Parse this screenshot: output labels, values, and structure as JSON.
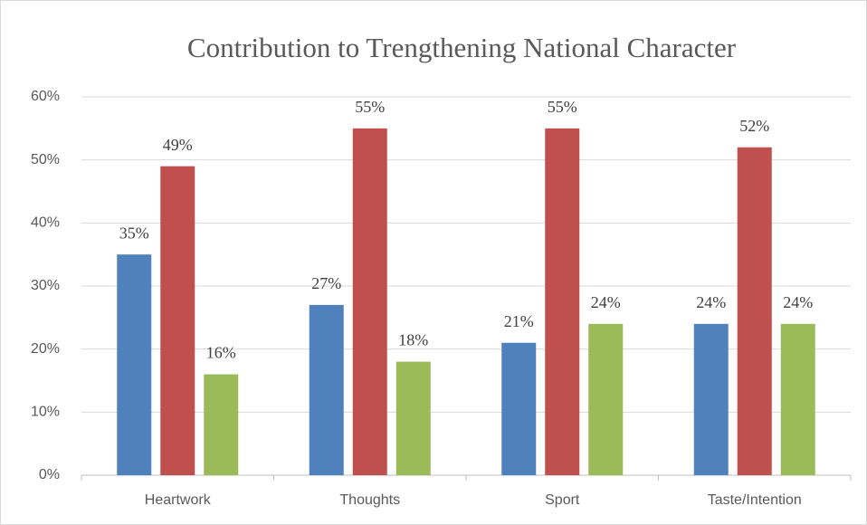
{
  "chart_data": {
    "type": "bar",
    "title": "Contribution to Trengthening National Character",
    "categories": [
      "Heartwork",
      "Thoughts",
      "Sport",
      "Taste/Intention"
    ],
    "series": [
      {
        "color": "#4f81bd",
        "values": [
          35,
          27,
          21,
          24
        ],
        "value_labels": [
          "35%",
          "27%",
          "21%",
          "24%"
        ]
      },
      {
        "color": "#c0504d",
        "values": [
          49,
          55,
          55,
          52
        ],
        "value_labels": [
          "49%",
          "55%",
          "55%",
          "52%"
        ]
      },
      {
        "color": "#9bbb59",
        "values": [
          16,
          18,
          24,
          24
        ],
        "value_labels": [
          "16%",
          "18%",
          "24%",
          "24%"
        ]
      }
    ],
    "ylim": [
      0,
      60
    ],
    "yticks": [
      {
        "value": 0,
        "label": "0%"
      },
      {
        "value": 10,
        "label": "10%"
      },
      {
        "value": 20,
        "label": "20%"
      },
      {
        "value": 30,
        "label": "30%"
      },
      {
        "value": 40,
        "label": "40%"
      },
      {
        "value": 50,
        "label": "50%"
      },
      {
        "value": 60,
        "label": "60%"
      }
    ],
    "grid": true
  }
}
